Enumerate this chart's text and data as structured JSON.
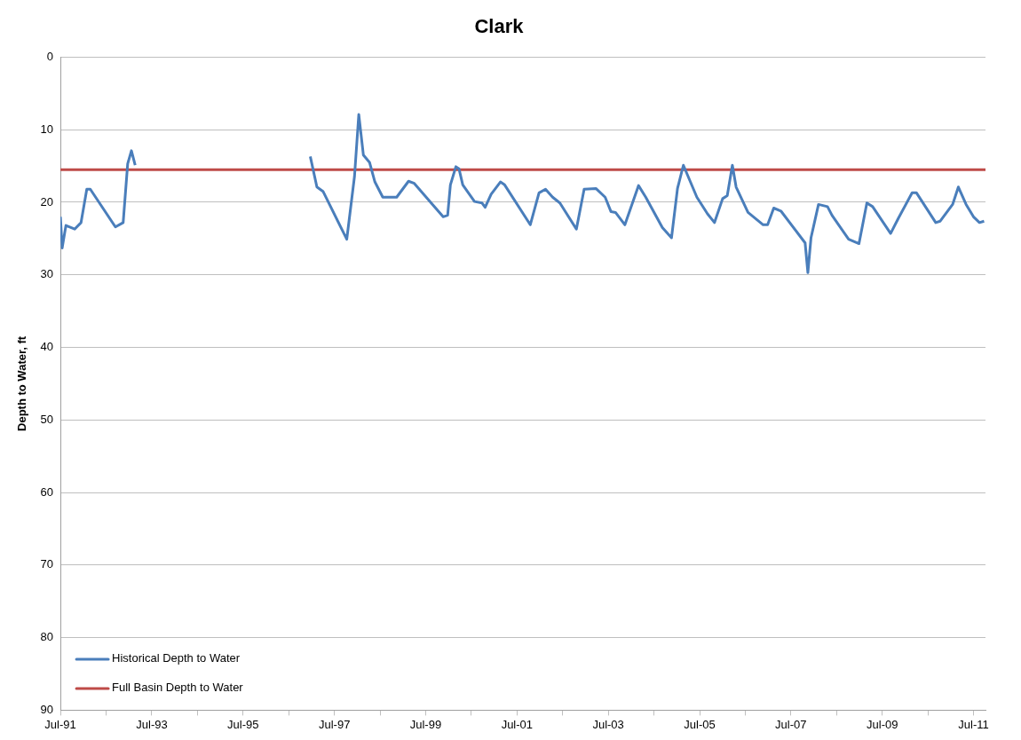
{
  "chart_data": {
    "type": "line",
    "title": "Clark",
    "ylabel": "Depth to Water, ft",
    "xlim": [
      "1991-07-01",
      "2011-10-05"
    ],
    "xticks": [
      {
        "value": "1991-07",
        "label": "Jul-91"
      },
      {
        "value": "1992-07",
        "label": null
      },
      {
        "value": "1993-07",
        "label": "Jul-93"
      },
      {
        "value": "1994-07",
        "label": null
      },
      {
        "value": "1995-07",
        "label": "Jul-95"
      },
      {
        "value": "1996-07",
        "label": null
      },
      {
        "value": "1997-07",
        "label": "Jul-97"
      },
      {
        "value": "1998-07",
        "label": null
      },
      {
        "value": "1999-07",
        "label": "Jul-99"
      },
      {
        "value": "2000-07",
        "label": null
      },
      {
        "value": "2001-07",
        "label": "Jul-01"
      },
      {
        "value": "2002-07",
        "label": null
      },
      {
        "value": "2003-07",
        "label": "Jul-03"
      },
      {
        "value": "2004-07",
        "label": null
      },
      {
        "value": "2005-07",
        "label": "Jul-05"
      },
      {
        "value": "2006-07",
        "label": null
      },
      {
        "value": "2007-07",
        "label": "Jul-07"
      },
      {
        "value": "2008-07",
        "label": null
      },
      {
        "value": "2009-07",
        "label": "Jul-09"
      },
      {
        "value": "2010-07",
        "label": null
      },
      {
        "value": "2011-07",
        "label": "Jul-11"
      }
    ],
    "ylim": [
      90,
      0
    ],
    "yticks": [
      0,
      10,
      20,
      30,
      40,
      50,
      60,
      70,
      80,
      90
    ],
    "grid": "y",
    "legend": "bottom left",
    "marker": "none",
    "line_style": "solid",
    "series": [
      {
        "name": "Historical Depth to Water",
        "color": "#4a7ebb",
        "x": [
          "1991-07-01",
          "1991-07-15",
          "1991-08-14",
          "1991-10-23",
          "1991-12-13",
          "1992-01-28",
          "1992-02-25",
          "1992-09-13",
          "1992-11-14",
          "1992-12-20",
          "1993-01-19",
          "1993-02-18",
          "1995-01-01",
          "1996-12-20",
          "1997-02-11",
          "1997-04-01",
          "1997-10-08",
          "1997-12-09",
          "1998-01-12",
          "1998-02-18",
          "1998-04-08",
          "1998-05-21",
          "1998-07-23",
          "1998-11-11",
          "1999-02-14",
          "1999-04-01",
          "1999-08-25",
          "1999-11-18",
          "1999-12-24",
          "2000-01-15",
          "2000-02-28",
          "2000-03-24",
          "2000-04-23",
          "2000-07-26",
          "2000-09-24",
          "2000-10-19",
          "2000-12-06",
          "2001-02-18",
          "2001-03-24",
          "2001-10-15",
          "2001-12-24",
          "2002-02-14",
          "2002-04-12",
          "2002-06-09",
          "2002-10-19",
          "2002-12-20",
          "2003-03-24",
          "2003-06-06",
          "2003-07-23",
          "2003-08-28",
          "2003-11-11",
          "2004-02-28",
          "2004-04-26",
          "2004-09-06",
          "2004-11-18",
          "2005-01-05",
          "2005-02-21",
          "2005-06-09",
          "2005-09-02",
          "2005-10-28",
          "2006-01-01",
          "2006-02-07",
          "2006-03-20",
          "2006-04-19",
          "2006-07-23",
          "2006-11-21",
          "2006-12-27",
          "2007-02-14",
          "2007-04-12",
          "2007-10-23",
          "2007-11-14",
          "2007-12-09",
          "2008-02-07",
          "2008-04-19",
          "2008-05-25",
          "2008-10-05",
          "2008-12-27",
          "2009-02-28",
          "2009-04-15",
          "2009-09-06",
          "2009-11-07",
          "2010-02-25",
          "2010-04-01",
          "2010-09-02",
          "2010-10-08",
          "2011-01-15",
          "2011-03-02",
          "2011-05-03",
          "2011-07-01",
          "2011-08-18",
          "2011-09-24"
        ],
        "values": [
          22,
          26.3,
          23.2,
          23.7,
          22.8,
          18.2,
          18.2,
          23.4,
          22.8,
          14.7,
          12.9,
          14.9,
          null,
          13.7,
          17.9,
          18.5,
          25.1,
          16.4,
          7.9,
          13.5,
          14.5,
          17.2,
          19.3,
          19.3,
          17.1,
          17.4,
          20.3,
          22.0,
          21.8,
          17.6,
          15.1,
          15.4,
          17.6,
          19.9,
          20.1,
          20.7,
          18.9,
          17.2,
          17.6,
          23.1,
          18.7,
          18.2,
          19.3,
          20.1,
          23.7,
          18.2,
          18.1,
          19.3,
          21.3,
          21.4,
          23.1,
          17.7,
          19.3,
          23.5,
          24.9,
          18.1,
          14.9,
          19.3,
          21.6,
          22.8,
          19.5,
          19.1,
          14.9,
          17.9,
          21.4,
          23.1,
          23.1,
          20.8,
          21.2,
          25.6,
          29.7,
          24.9,
          20.3,
          20.6,
          21.8,
          25.1,
          25.7,
          20.1,
          20.6,
          24.3,
          22.2,
          18.7,
          18.7,
          22.8,
          22.6,
          20.3,
          17.9,
          20.3,
          22.0,
          22.8,
          22.6
        ]
      },
      {
        "name": "Full Basin Depth to Water",
        "color": "#be4b48",
        "x": [
          "1991-07-01",
          "2011-10-05"
        ],
        "values": [
          15.5,
          15.5
        ]
      }
    ]
  }
}
